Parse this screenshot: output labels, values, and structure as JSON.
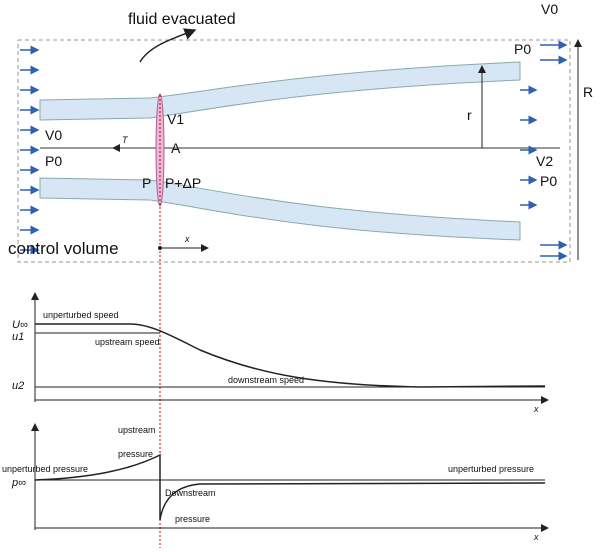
{
  "diagram": {
    "title": "fluid evacuated",
    "labels": {
      "v0_top": "V0",
      "p0_top": "P0",
      "R": "R",
      "v1": "V1",
      "r": "r",
      "v0_left": "V0",
      "p0_left": "P0",
      "T": "T",
      "A": "A",
      "v2": "V2",
      "p0_right": "P0",
      "P": "P",
      "P_dP": "P+ΔP",
      "control_volume": "control volume",
      "x": "x"
    }
  },
  "speed_plot": {
    "u_inf": "U∞",
    "u1": "u1",
    "u2": "u2",
    "unperturbed": "unperturbed speed",
    "upstream": "upstream speed",
    "downstream": "downstream speed",
    "x": "x"
  },
  "pressure_plot": {
    "upstream_1": "upstream",
    "upstream_2": "pressure",
    "unperturbed_left": "unperturbed pressure",
    "p_inf": "p∞",
    "downstream_1": "Downstream",
    "downstream_2": "pressure",
    "unperturbed_right": "unperturbed pressure",
    "x": "x"
  }
}
